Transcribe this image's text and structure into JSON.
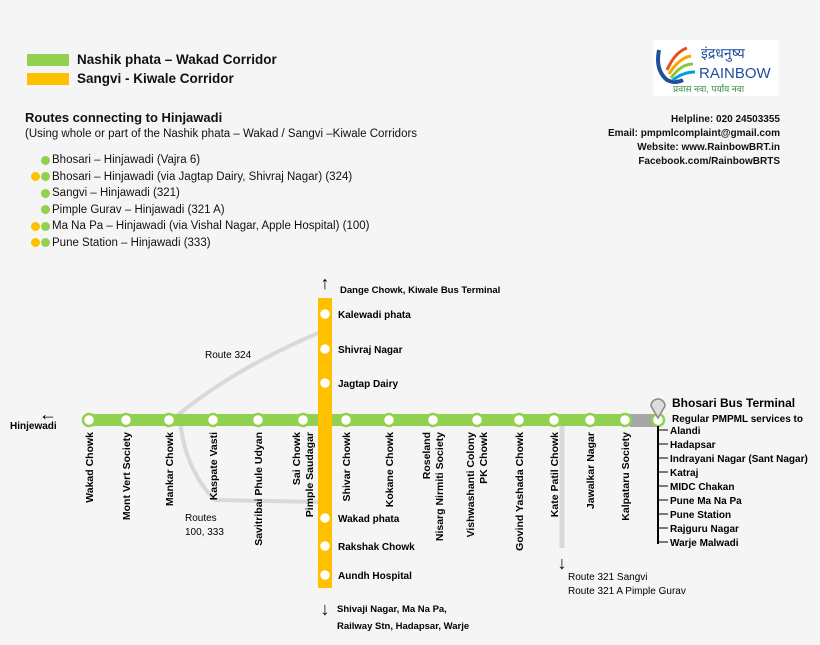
{
  "colors": {
    "green": "#92d050",
    "orange": "#ffc000",
    "connector": "#d9d9d9",
    "terminal_link": "#a6a6a6"
  },
  "legend": [
    {
      "label": "Nashik phata – Wakad Corridor",
      "color": "#92d050"
    },
    {
      "label": "Sangvi - Kiwale Corridor",
      "color": "#ffc000"
    }
  ],
  "routes": {
    "title": "Routes connecting to Hinjawadi",
    "subtitle": "(Using whole or part of the Nashik phata – Wakad / Sangvi –Kiwale Corridors",
    "items": [
      {
        "label": "Bhosari – Hinjawadi (Vajra 6)",
        "corridors": [
          "green"
        ]
      },
      {
        "label": "Bhosari – Hinjawadi (via Jagtap Dairy, Shivraj Nagar) (324)",
        "corridors": [
          "orange",
          "green"
        ]
      },
      {
        "label": "Sangvi – Hinjawadi (321)",
        "corridors": [
          "green"
        ]
      },
      {
        "label": "Pimple Gurav – Hinjawadi (321 A)",
        "corridors": [
          "green"
        ]
      },
      {
        "label": "Ma Na Pa – Hinjawadi (via Vishal Nagar, Apple Hospital) (100)",
        "corridors": [
          "orange",
          "green"
        ]
      },
      {
        "label": "Pune Station – Hinjawadi (333)",
        "corridors": [
          "orange",
          "green"
        ]
      }
    ]
  },
  "logo": {
    "devanagari": "इंद्रधनुष्य",
    "name": "RAINBOW",
    "tagline": "प्रवास नवा, पर्याय नवा"
  },
  "contact": {
    "helpline": "Helpline: 020 24503355",
    "email": "Email: pmpmlcomplaint@gmail.com",
    "website": "Website:  www.RainbowBRT.in",
    "facebook": "Facebook.com/RainbowBRTS"
  },
  "map": {
    "west_end": "Hinjewadi",
    "green_stations": [
      [
        "Wakad Chowk"
      ],
      [
        "Mont Vert Society"
      ],
      [
        "Mankar Chowk"
      ],
      [
        "Kaspate Vasti"
      ],
      [
        "Savitribai Phule Udyan"
      ],
      [
        "Sai Chowk",
        "Pimple Saudagar"
      ],
      [
        "Shivar Chowk"
      ],
      [
        "Kokane Chowk"
      ],
      [
        "Roseland",
        "Nisarg Nirmiti Society"
      ],
      [
        "Vishwashanti Colony",
        "PK Chowk"
      ],
      [
        "Govind Yashada Chowk"
      ],
      [
        "Kate Patil Chowk"
      ],
      [
        "Jawalkar Nagar"
      ],
      [
        "Kalpataru Society"
      ]
    ],
    "orange_north": [
      "Kalewadi phata",
      "Shivraj Nagar",
      "Jagtap Dairy"
    ],
    "orange_south": [
      "Wakad phata",
      "Rakshak Chowk",
      "Aundh Hospital"
    ],
    "north_end": "Dange Chowk, Kiwale Bus  Terminal",
    "south_end": [
      "Shivaji Nagar, Ma Na Pa,",
      "Railway Stn, Hadapsar, Warje"
    ],
    "route_324": "Route 324",
    "routes_100_333": [
      "Routes",
      "100, 333"
    ],
    "route_321": [
      "Route 321 Sangvi",
      "Route 321 A Pimple Gurav"
    ],
    "terminal": {
      "name": "Bhosari Bus Terminal",
      "services_label": "Regular PMPML services  to",
      "services": [
        "Alandi",
        "Hadapsar",
        "Indrayani Nagar (Sant Nagar)",
        "Katraj",
        "MIDC Chakan",
        "Pune Ma Na Pa",
        "Pune Station",
        "Rajguru Nagar",
        "Warje Malwadi"
      ]
    }
  }
}
